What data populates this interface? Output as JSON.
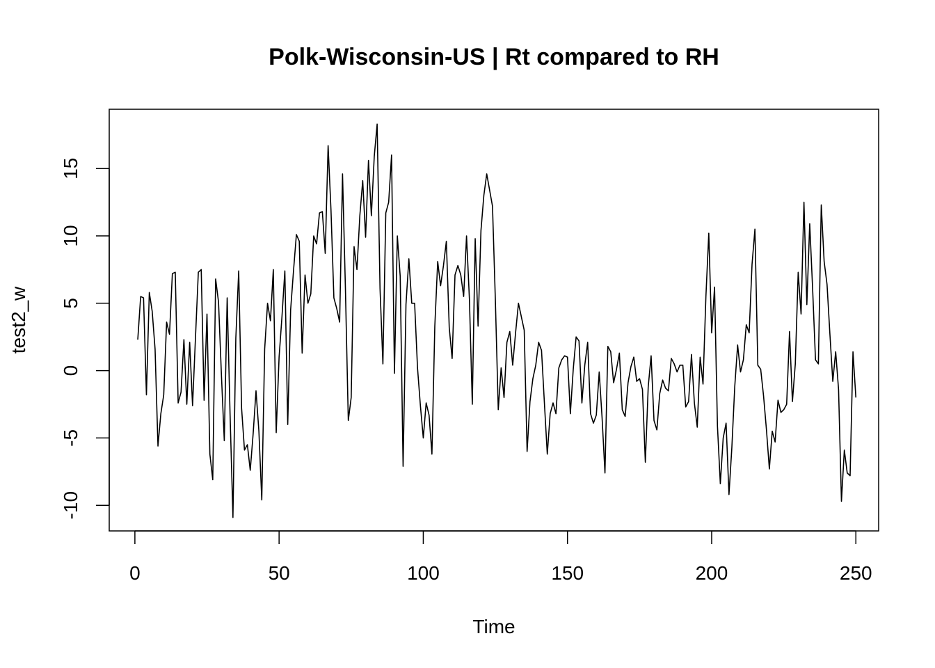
{
  "chart_data": {
    "type": "line",
    "title": "Polk-Wisconsin-US | Rt compared to RH",
    "xlabel": "Time",
    "ylabel": "test2_w",
    "xlim": [
      -8.9,
      257.9
    ],
    "ylim": [
      -11.9,
      19.4
    ],
    "xticks": [
      0,
      50,
      100,
      150,
      200,
      250
    ],
    "yticks": [
      -10,
      -5,
      0,
      5,
      10,
      15
    ],
    "xtick_labels": [
      "0",
      "50",
      "100",
      "150",
      "200",
      "250"
    ],
    "ytick_labels": [
      "-10",
      "-5",
      "0",
      "5",
      "10",
      "15"
    ],
    "line_color": "#000000",
    "grid": false,
    "legend": "none",
    "series": [
      {
        "x_start": 1,
        "values": [
          2.3,
          5.5,
          5.4,
          -1.8,
          5.8,
          4.4,
          1.6,
          -5.6,
          -3.2,
          -1.8,
          3.6,
          2.7,
          7.2,
          7.3,
          -2.4,
          -1.6,
          2.3,
          -2.5,
          2.1,
          -2.6,
          2.4,
          7.3,
          7.5,
          -2.2,
          4.2,
          -6.2,
          -8.1,
          6.8,
          5.1,
          -0.3,
          -5.2,
          5.4,
          -3.2,
          -10.9,
          2.4,
          7.4,
          -2.8,
          -5.9,
          -5.5,
          -7.4,
          -4.7,
          -1.5,
          -4.5,
          -9.6,
          1.6,
          5.0,
          3.7,
          7.5,
          -4.6,
          1.0,
          4.0,
          7.4,
          -4.0,
          4.5,
          7.4,
          10.1,
          9.6,
          1.3,
          7.1,
          5.0,
          5.7,
          10.0,
          9.4,
          11.7,
          11.8,
          8.7,
          16.7,
          11.9,
          5.4,
          4.6,
          3.6,
          14.6,
          6.1,
          -3.7,
          -2.0,
          9.2,
          7.5,
          11.5,
          14.1,
          9.9,
          15.6,
          11.5,
          15.9,
          18.3,
          6.1,
          0.5,
          11.7,
          12.5,
          16.0,
          -0.2,
          10.0,
          7.0,
          -7.1,
          4.9,
          8.3,
          5.0,
          5.0,
          0.2,
          -2.6,
          -5.0,
          -2.4,
          -3.3,
          -6.2,
          3.3,
          8.1,
          6.3,
          7.8,
          9.6,
          3.2,
          0.9,
          7.1,
          7.8,
          7.1,
          5.5,
          10.0,
          5.3,
          -2.5,
          9.8,
          3.3,
          10.4,
          13.0,
          14.6,
          13.4,
          12.2,
          5.2,
          -2.9,
          0.2,
          -2.0,
          2.1,
          2.9,
          0.4,
          2.8,
          5.0,
          4.0,
          3.0,
          -6.0,
          -2.3,
          -0.6,
          0.4,
          2.1,
          1.5,
          -2.4,
          -6.2,
          -3.2,
          -2.4,
          -3.2,
          0.2,
          0.8,
          1.1,
          1.0,
          -3.2,
          0.1,
          2.5,
          2.2,
          -2.4,
          0.4,
          2.1,
          -3.2,
          -3.9,
          -3.3,
          -0.1,
          -3.5,
          -7.6,
          1.8,
          1.4,
          -0.9,
          0.1,
          1.3,
          -2.9,
          -3.4,
          -0.9,
          0.3,
          1.0,
          -0.8,
          -0.6,
          -1.4,
          -6.8,
          -1.2,
          1.1,
          -3.7,
          -4.4,
          -1.7,
          -0.7,
          -1.3,
          -1.5,
          0.9,
          0.5,
          -0.1,
          0.4,
          0.4,
          -2.7,
          -2.3,
          1.2,
          -2.4,
          -4.2,
          1.0,
          -1.0,
          5.5,
          10.2,
          2.8,
          6.2,
          -4.1,
          -8.4,
          -5.0,
          -3.9,
          -9.2,
          -5.7,
          -1.2,
          1.9,
          -0.1,
          0.8,
          3.4,
          2.8,
          7.9,
          10.5,
          0.4,
          0.1,
          -1.9,
          -4.4,
          -7.3,
          -4.5,
          -5.3,
          -2.2,
          -3.1,
          -2.9,
          -2.5,
          2.9,
          -2.3,
          0.5,
          7.3,
          4.2,
          12.5,
          4.9,
          10.9,
          6.1,
          0.8,
          0.5,
          12.3,
          8.1,
          6.4,
          2.7,
          -0.8,
          1.4,
          -1.4,
          -9.7,
          -5.9,
          -7.6,
          -7.8,
          1.4,
          -2.0
        ]
      }
    ]
  }
}
